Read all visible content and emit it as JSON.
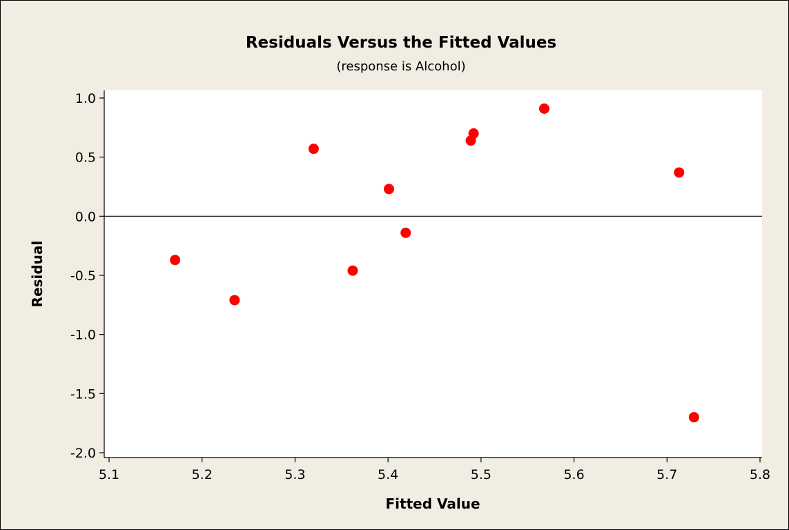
{
  "chart_data": {
    "type": "scatter",
    "title": "Residuals Versus the Fitted Values",
    "subtitle": "(response is Alcohol)",
    "xlabel": "Fitted Value",
    "ylabel": "Residual",
    "xlim": [
      5.1,
      5.8
    ],
    "ylim": [
      -2.0,
      1.0
    ],
    "x_ticks": [
      5.1,
      5.2,
      5.3,
      5.4,
      5.5,
      5.6,
      5.7,
      5.8
    ],
    "x_tick_labels": [
      "5.1",
      "5.2",
      "5.3",
      "5.4",
      "5.5",
      "5.6",
      "5.7",
      "5.8"
    ],
    "y_ticks": [
      -2.0,
      -1.5,
      -1.0,
      -0.5,
      0.0,
      0.5,
      1.0
    ],
    "y_tick_labels": [
      "-2.0",
      "-1.5",
      "-1.0",
      "-0.5",
      "0.0",
      "0.5",
      "1.0"
    ],
    "reference_line_y": 0.0,
    "grid": false,
    "points": [
      {
        "x": 5.171,
        "y": -0.37
      },
      {
        "x": 5.235,
        "y": -0.71
      },
      {
        "x": 5.32,
        "y": 0.57
      },
      {
        "x": 5.362,
        "y": -0.46
      },
      {
        "x": 5.401,
        "y": 0.23
      },
      {
        "x": 5.419,
        "y": -0.14
      },
      {
        "x": 5.489,
        "y": 0.64
      },
      {
        "x": 5.492,
        "y": 0.7
      },
      {
        "x": 5.568,
        "y": 0.91
      },
      {
        "x": 5.713,
        "y": 0.37
      },
      {
        "x": 5.729,
        "y": -1.7
      }
    ]
  },
  "colors": {
    "outer_background": "#f1ede3",
    "plot_background": "#ffffff",
    "marker": "#ff0000",
    "axis": "#000000",
    "reference_line": "#000000"
  }
}
